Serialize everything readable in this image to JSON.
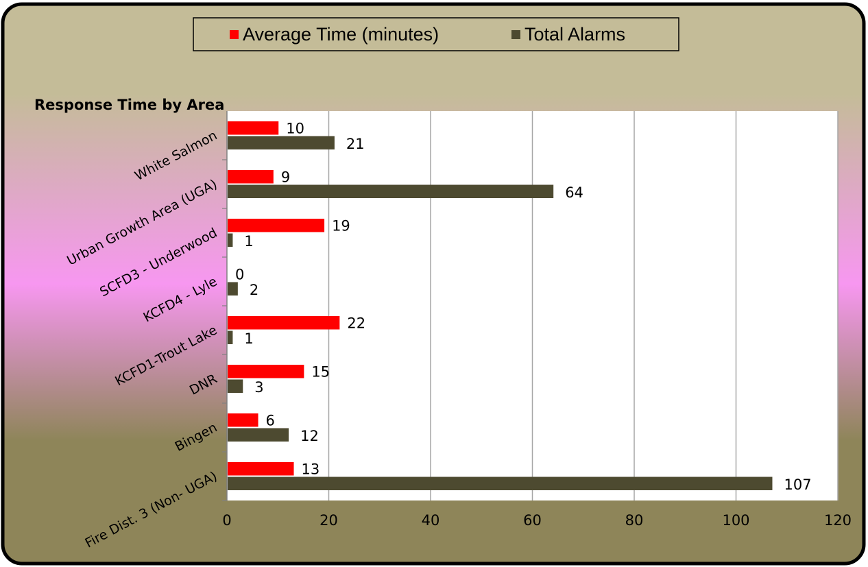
{
  "colors": {
    "avg_time": "#ff0000",
    "total_alarms": "#4d4a30",
    "bg_top": "#c4bc98",
    "bg_mid": "#f797f0",
    "bg_bottom": "#8e8559",
    "grid": "#a6a6a6"
  },
  "legend": {
    "avg_label": "Average Time (minutes)",
    "total_label": "Total Alarms"
  },
  "chart_data": {
    "type": "bar",
    "orientation": "horizontal",
    "title": "Response Time by Area",
    "categories": [
      "White Salmon",
      "Urban Growth Area (UGA)",
      "SCFD3 - Underwood",
      "KCFD4 - Lyle",
      "KCFD1-Trout Lake",
      "DNR",
      "Bingen",
      "Fire Dist. 3 (Non- UGA)"
    ],
    "series": [
      {
        "name": "Average Time (minutes)",
        "values": [
          10,
          9,
          19,
          0,
          22,
          15,
          6,
          13
        ]
      },
      {
        "name": "Total Alarms",
        "values": [
          21,
          64,
          1,
          2,
          1,
          3,
          12,
          107
        ]
      }
    ],
    "xlim": [
      0,
      120
    ],
    "xticks": [
      "0",
      "20",
      "40",
      "60",
      "80",
      "100",
      "120"
    ],
    "grid": true,
    "legend_position": "top"
  }
}
